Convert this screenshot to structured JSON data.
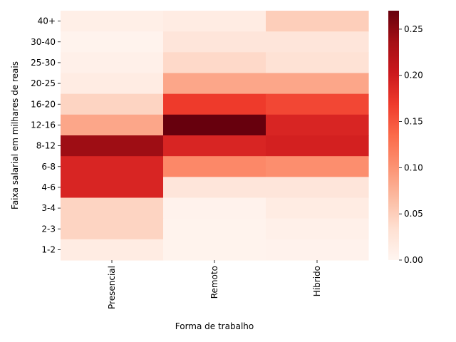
{
  "chart_data": {
    "type": "heatmap",
    "title": "",
    "xlabel": "Forma de trabalho",
    "ylabel": "Faixa salarial em milhares de reais",
    "columns": [
      "Presencial",
      "Remoto",
      "Híbrido"
    ],
    "rows": [
      "40+",
      "30-40",
      "25-30",
      "20-25",
      "16-20",
      "12-16",
      "8-12",
      "6-8",
      "4-6",
      "3-4",
      "2-3",
      "1-2"
    ],
    "values": [
      [
        0.01,
        0.015,
        0.05
      ],
      [
        0.003,
        0.025,
        0.025
      ],
      [
        0.008,
        0.04,
        0.03
      ],
      [
        0.015,
        0.085,
        0.085
      ],
      [
        0.045,
        0.17,
        0.16
      ],
      [
        0.085,
        0.27,
        0.19
      ],
      [
        0.24,
        0.19,
        0.195
      ],
      [
        0.19,
        0.11,
        0.105
      ],
      [
        0.19,
        0.025,
        0.025
      ],
      [
        0.045,
        0.005,
        0.015
      ],
      [
        0.045,
        0.003,
        0.008
      ],
      [
        0.015,
        0.003,
        0.005
      ]
    ],
    "colorbar": {
      "colormap": "Reds",
      "vmin": 0.0,
      "vmax": 0.27,
      "ticks": [
        "0.00",
        "0.05",
        "0.10",
        "0.15",
        "0.20",
        "0.25"
      ]
    }
  }
}
